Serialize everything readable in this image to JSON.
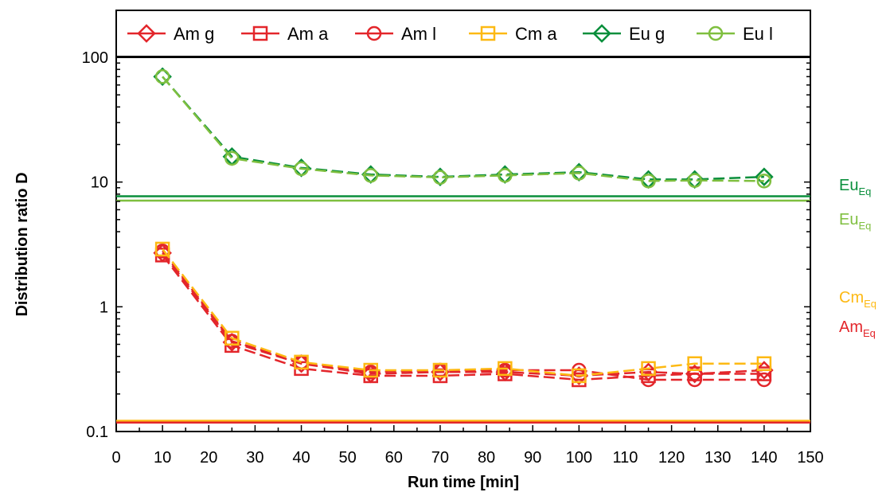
{
  "chart_data": {
    "type": "line",
    "title": "",
    "xlabel": "Run time [min]",
    "ylabel": "Distribution ratio D",
    "xlim": [
      0,
      150
    ],
    "ylim": [
      0.1,
      100
    ],
    "yscale": "log",
    "x_ticks": [
      "0",
      "10",
      "20",
      "30",
      "40",
      "50",
      "60",
      "70",
      "80",
      "90",
      "100",
      "110",
      "120",
      "130",
      "140",
      "150"
    ],
    "y_ticks": [
      "0.1",
      "1",
      "10",
      "100"
    ],
    "legend_position": "top",
    "x": [
      10,
      25,
      40,
      55,
      70,
      84,
      100,
      115,
      125,
      140
    ],
    "series": [
      {
        "name": "Am g",
        "color": "#e3262b",
        "marker": "diamond",
        "values": [
          2.7,
          0.52,
          0.35,
          0.29,
          0.3,
          0.3,
          0.28,
          0.3,
          0.29,
          0.31
        ]
      },
      {
        "name": "Am a",
        "color": "#e3262b",
        "marker": "square",
        "values": [
          2.6,
          0.49,
          0.32,
          0.28,
          0.28,
          0.29,
          0.26,
          0.28,
          0.29,
          0.29
        ]
      },
      {
        "name": "Am l",
        "color": "#e3262b",
        "marker": "circle",
        "values": [
          2.8,
          0.53,
          0.36,
          0.3,
          0.31,
          0.31,
          0.31,
          0.26,
          0.26,
          0.26
        ]
      },
      {
        "name": "Cm a",
        "color": "#fdb913",
        "marker": "square",
        "values": [
          2.9,
          0.56,
          0.36,
          0.31,
          0.31,
          0.32,
          0.28,
          0.32,
          0.35,
          0.35
        ]
      },
      {
        "name": "Eu g",
        "color": "#0a8f3c",
        "marker": "diamond",
        "values": [
          70,
          16,
          13,
          11.5,
          11,
          11.5,
          12,
          10.5,
          10.5,
          11
        ]
      },
      {
        "name": "Eu l",
        "color": "#7fbf3f",
        "marker": "circle",
        "values": [
          70,
          15.5,
          12.8,
          11.3,
          10.9,
          11.3,
          11.8,
          10.2,
          10.3,
          10.2
        ]
      }
    ],
    "equilibrium_lines": [
      {
        "label": "Eu",
        "sub": "Eq",
        "value": 7.7,
        "color": "#0a8f3c"
      },
      {
        "label": "Eu",
        "sub": "Eq",
        "value": 7.1,
        "color": "#7fbf3f"
      },
      {
        "label": "Cm",
        "sub": "Eq",
        "value": 0.122,
        "color": "#fdb913"
      },
      {
        "label": "Am",
        "sub": "Eq",
        "value": 0.118,
        "color": "#e3262b"
      }
    ]
  }
}
